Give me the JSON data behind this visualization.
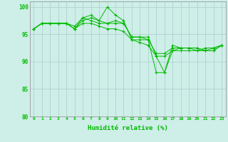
{
  "xlabel": "Humidité relative (%)",
  "xlim": [
    -0.5,
    23.5
  ],
  "ylim": [
    80,
    101
  ],
  "yticks": [
    80,
    85,
    90,
    95,
    100
  ],
  "xticks": [
    0,
    1,
    2,
    3,
    4,
    5,
    6,
    7,
    8,
    9,
    10,
    11,
    12,
    13,
    14,
    15,
    16,
    17,
    18,
    19,
    20,
    21,
    22,
    23
  ],
  "background_color": "#ceeee8",
  "grid_color": "#aacccc",
  "line_color": "#00bb00",
  "series": [
    [
      96,
      97,
      97,
      97,
      97,
      96,
      98,
      98.5,
      97.5,
      100,
      98.5,
      97.5,
      94,
      94,
      94,
      88,
      88,
      93,
      92.5,
      92.5,
      92.5,
      92,
      92,
      93
    ],
    [
      96,
      97,
      97,
      97,
      97,
      96.5,
      98,
      97.5,
      97,
      97,
      97.5,
      97,
      94.5,
      94.5,
      94.5,
      91,
      88,
      92,
      92.5,
      92.5,
      92.5,
      92,
      92.5,
      93
    ],
    [
      96,
      97,
      97,
      97,
      97,
      96,
      97.5,
      98,
      97.5,
      97,
      97,
      97,
      94.5,
      94.5,
      94,
      91.5,
      91.5,
      92.5,
      92.5,
      92.5,
      92,
      92.5,
      92.5,
      93
    ],
    [
      96,
      97,
      97,
      97,
      97,
      96,
      97,
      97,
      96.5,
      96,
      96,
      95.5,
      94,
      93.5,
      93,
      91,
      91,
      92,
      92,
      92,
      92,
      92,
      92,
      93
    ]
  ]
}
